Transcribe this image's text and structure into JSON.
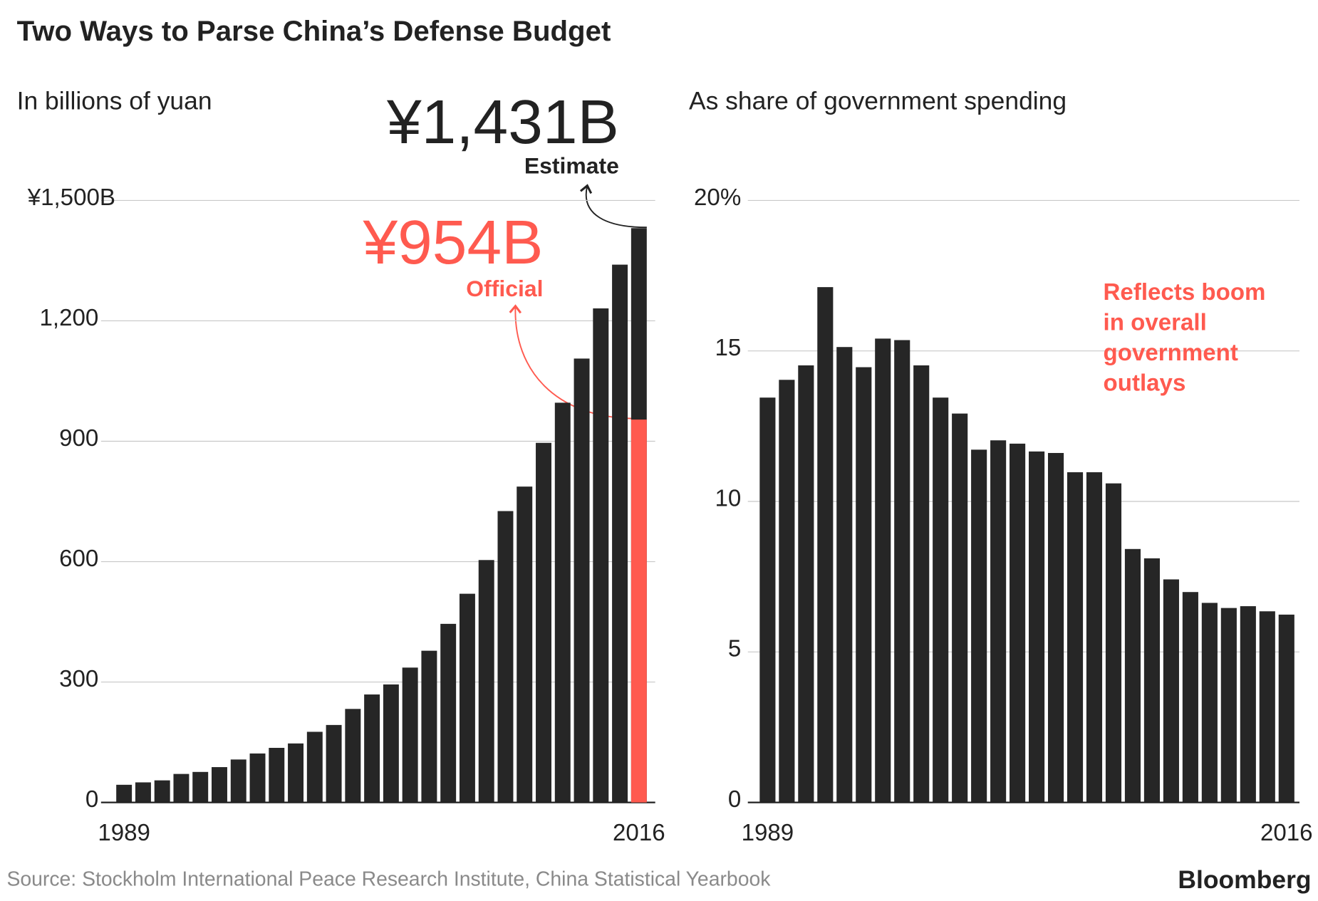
{
  "title": "Two Ways to Parse China’s Defense Budget",
  "source": "Source: Stockholm International Peace Research Institute, China Statistical Yearbook",
  "brand": "Bloomberg",
  "chart_data": [
    {
      "type": "bar",
      "subtitle": "In billions of yuan",
      "color": "#262626",
      "categories": [
        "1989",
        null,
        null,
        null,
        null,
        null,
        null,
        null,
        null,
        null,
        null,
        null,
        null,
        null,
        null,
        null,
        null,
        null,
        null,
        null,
        null,
        null,
        null,
        null,
        null,
        null,
        null,
        "2016"
      ],
      "values": [
        44,
        50,
        55,
        71,
        76,
        88,
        107,
        122,
        136,
        147,
        176,
        193,
        233,
        269,
        294,
        336,
        378,
        445,
        520,
        604,
        726,
        787,
        896,
        996,
        1106,
        1231,
        1340,
        1431
      ],
      "ylim": [
        0,
        1500
      ],
      "yticks": [
        0,
        300,
        600,
        900,
        {
          "value": 1200,
          "label": "1,200"
        },
        {
          "value": 1500,
          "label": "¥1,500B"
        }
      ],
      "grid": true,
      "estimate": {
        "value_label": "¥1,431B",
        "label": "Estimate"
      },
      "official": {
        "value": 954,
        "value_label": "¥954B",
        "label": "Official",
        "color": "#ff5a4f"
      }
    },
    {
      "type": "bar",
      "subtitle": "As share of government spending",
      "color": "#262626",
      "categories": [
        "1989",
        null,
        null,
        null,
        null,
        null,
        null,
        null,
        null,
        null,
        null,
        null,
        null,
        null,
        null,
        null,
        null,
        null,
        null,
        null,
        null,
        null,
        null,
        null,
        null,
        null,
        null,
        "2016"
      ],
      "values": [
        13.45,
        14.04,
        14.52,
        17.12,
        15.13,
        14.46,
        15.41,
        15.36,
        14.52,
        13.45,
        12.92,
        11.72,
        12.03,
        11.92,
        11.66,
        11.61,
        10.97,
        10.97,
        10.6,
        8.42,
        8.11,
        7.41,
        6.99,
        6.63,
        6.46,
        6.52,
        6.35,
        6.24
      ],
      "ylim": [
        0,
        20
      ],
      "yticks": [
        0,
        5,
        10,
        15,
        {
          "value": 20,
          "label": "20%"
        }
      ],
      "grid": true,
      "annotation": {
        "lines": [
          "Reflects boom",
          "in overall",
          "government",
          "outlays"
        ],
        "color": "#ff5a4f"
      }
    }
  ]
}
